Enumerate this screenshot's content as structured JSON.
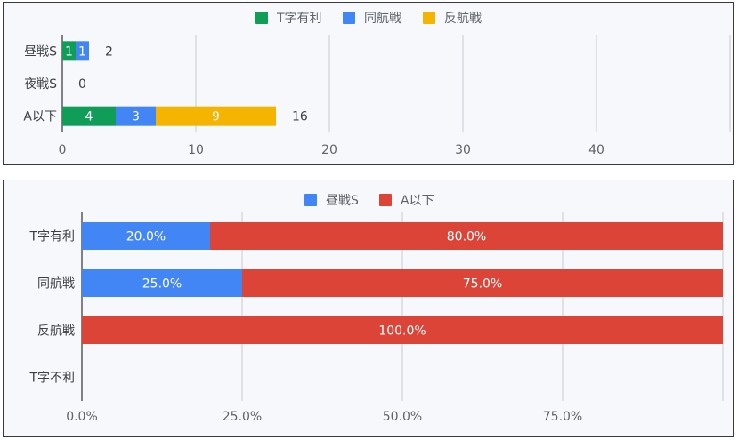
{
  "chart_data": [
    {
      "type": "bar",
      "orientation": "horizontal",
      "stacked": true,
      "categories": [
        "昼戦S",
        "夜戦S",
        "A以下"
      ],
      "series": [
        {
          "name": "T字有利",
          "color": "#0f9d58",
          "values": [
            1,
            0,
            4
          ]
        },
        {
          "name": "同航戦",
          "color": "#4285f4",
          "values": [
            1,
            0,
            3
          ]
        },
        {
          "name": "反航戦",
          "color": "#f4b400",
          "values": [
            0,
            0,
            9
          ]
        }
      ],
      "totals": [
        2,
        0,
        16
      ],
      "xlim": [
        0,
        50
      ],
      "x_ticks": [
        "0",
        "10",
        "20",
        "30",
        "40"
      ],
      "legend_position": "top",
      "grid": true
    },
    {
      "type": "bar",
      "orientation": "horizontal",
      "stacked": true,
      "percent": true,
      "categories": [
        "T字有利",
        "同航戦",
        "反航戦",
        "T字不利"
      ],
      "series": [
        {
          "name": "昼戦S",
          "color": "#4285f4",
          "values": [
            20.0,
            25.0,
            0,
            0
          ],
          "labels": [
            "20.0%",
            "25.0%",
            "",
            ""
          ]
        },
        {
          "name": "A以下",
          "color": "#db4437",
          "values": [
            80.0,
            75.0,
            100.0,
            0
          ],
          "labels": [
            "80.0%",
            "75.0%",
            "100.0%",
            ""
          ]
        }
      ],
      "xlim": [
        0,
        100
      ],
      "x_ticks": [
        "0.0%",
        "25.0%",
        "50.0%",
        "75.0%"
      ],
      "legend_position": "top",
      "grid": true
    }
  ]
}
